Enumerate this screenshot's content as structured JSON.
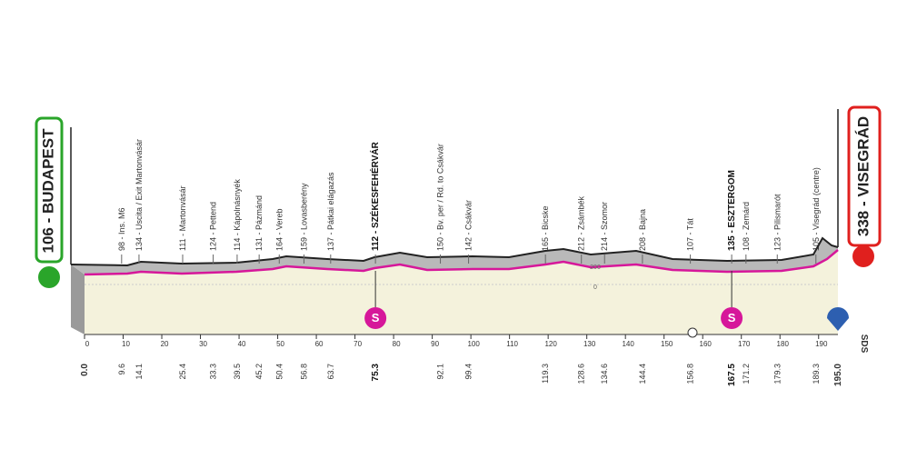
{
  "start": {
    "label": "106 - BUDAPEST",
    "km": "0.0"
  },
  "finish": {
    "label": "338 - VISEGRÁD",
    "km": "195.0"
  },
  "waypoints": [
    {
      "label": "98 - Ins. M6",
      "km": "9.6"
    },
    {
      "label": "134 - Uscita / Exit Martonvásár",
      "km": "14.1"
    },
    {
      "label": "111 - Martonvásár",
      "km": "25.4"
    },
    {
      "label": "124 - Pettend",
      "km": "33.3"
    },
    {
      "label": "114 - Kápolnásnyék",
      "km": "39.5"
    },
    {
      "label": "131 - Pázmánd",
      "km": "45.2"
    },
    {
      "label": "164 - Vereb",
      "km": "50.4"
    },
    {
      "label": "159 - Lovasberény",
      "km": "56.8"
    },
    {
      "label": "137 - Pátkai elágazás",
      "km": "63.7"
    },
    {
      "label": "112 - SZÉKESFEHÉRVÁR",
      "km": "75.3"
    },
    {
      "label": "150 - Bv. per / Rd. to Csákvár",
      "km": "92.1"
    },
    {
      "label": "142 - Csákvár",
      "km": "99.4"
    },
    {
      "label": "165 - Bicske",
      "km": "119.3"
    },
    {
      "label": "212 - Zsámbék",
      "km": "128.6"
    },
    {
      "label": "214 - Szomor",
      "km": "134.6"
    },
    {
      "label": "208 - Bajna",
      "km": "144.4"
    },
    {
      "label": "107 - Tát",
      "km": "156.8"
    },
    {
      "label": "135 - ESZTERGOM",
      "km": "167.5"
    },
    {
      "label": "108 - Zemárd",
      "km": "171.2"
    },
    {
      "label": "123 - Pilismarót",
      "km": "179.3"
    },
    {
      "label": "105 - Visegrád (centre)",
      "km": "189.3"
    }
  ],
  "sprint_marks": [
    "S",
    "S"
  ],
  "axis_ticks": [
    0,
    10,
    20,
    30,
    40,
    50,
    60,
    70,
    80,
    90,
    100,
    110,
    120,
    130,
    140,
    150,
    160,
    170,
    180,
    190
  ],
  "altitude_marks": [
    "200",
    "0"
  ],
  "logo": "SDS"
}
